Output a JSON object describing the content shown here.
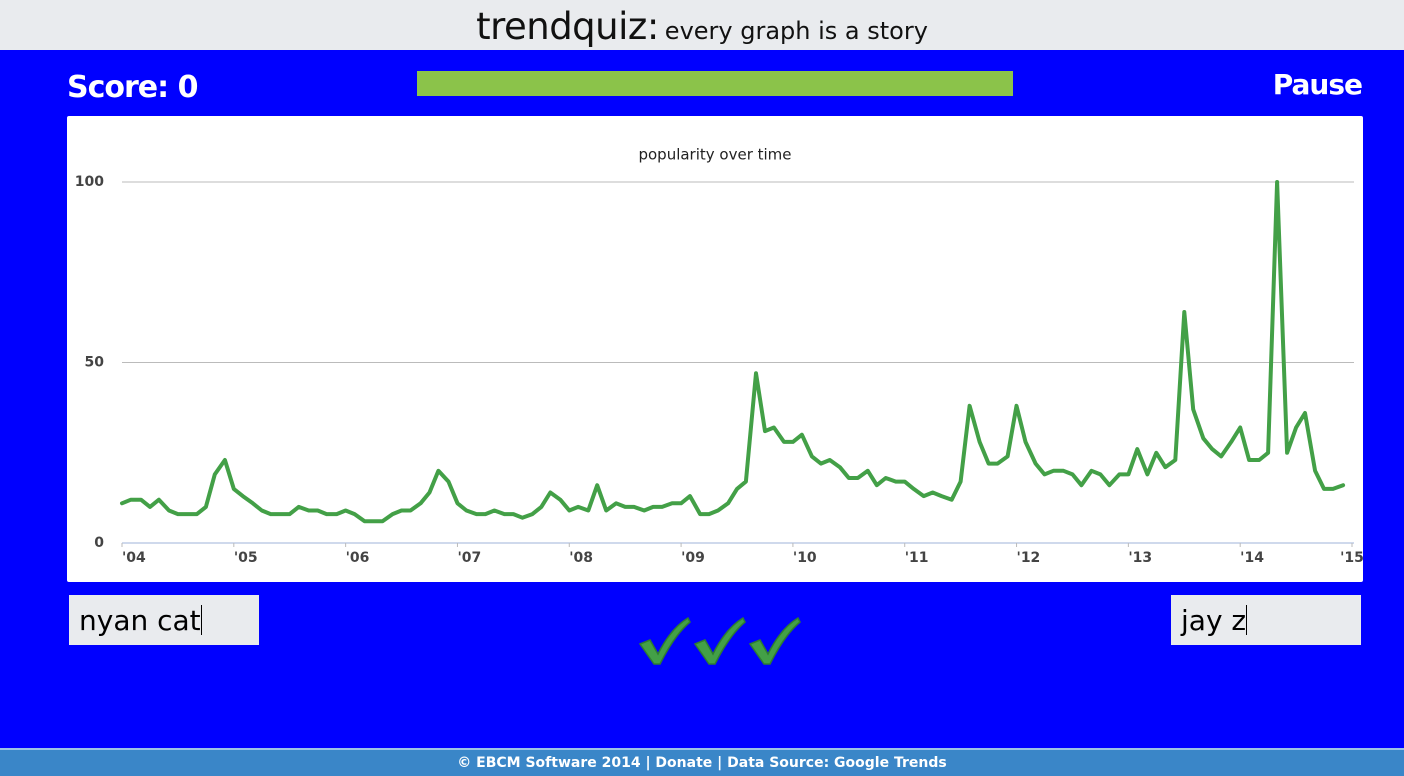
{
  "header": {
    "title": "trendquiz:",
    "subtitle": "every graph is a story"
  },
  "game": {
    "score_label": "Score:",
    "score": 0,
    "pause": "Pause",
    "left_answer": "nyan cat",
    "right_answer": "jay z"
  },
  "footer": "© EBCM Software 2014 | Donate | Data Source: Google Trends",
  "chart_data": {
    "type": "line",
    "title": "popularity over time",
    "color": "#43a047",
    "x": [
      2004,
      2004.08,
      2004.17,
      2004.25,
      2004.33,
      2004.42,
      2004.5,
      2004.58,
      2004.67,
      2004.75,
      2004.83,
      2004.92,
      2005,
      2005.08,
      2005.17,
      2005.25,
      2005.33,
      2005.42,
      2005.5,
      2005.58,
      2005.67,
      2005.75,
      2005.83,
      2005.92,
      2006,
      2006.08,
      2006.17,
      2006.25,
      2006.33,
      2006.42,
      2006.5,
      2006.58,
      2006.67,
      2006.75,
      2006.83,
      2006.92,
      2007,
      2007.08,
      2007.17,
      2007.25,
      2007.33,
      2007.42,
      2007.5,
      2007.58,
      2007.67,
      2007.75,
      2007.83,
      2007.92,
      2008,
      2008.08,
      2008.17,
      2008.25,
      2008.33,
      2008.42,
      2008.5,
      2008.58,
      2008.67,
      2008.75,
      2008.83,
      2008.92,
      2009,
      2009.08,
      2009.17,
      2009.25,
      2009.33,
      2009.42,
      2009.5,
      2009.58,
      2009.67,
      2009.75,
      2009.83,
      2009.92,
      2010,
      2010.08,
      2010.17,
      2010.25,
      2010.33,
      2010.42,
      2010.5,
      2010.58,
      2010.67,
      2010.75,
      2010.83,
      2010.92,
      2011,
      2011.08,
      2011.17,
      2011.25,
      2011.33,
      2011.42,
      2011.5,
      2011.58,
      2011.67,
      2011.75,
      2011.83,
      2011.92,
      2012,
      2012.08,
      2012.17,
      2012.25,
      2012.33,
      2012.42,
      2012.5,
      2012.58,
      2012.67,
      2012.75,
      2012.83,
      2012.92,
      2013,
      2013.08,
      2013.17,
      2013.25,
      2013.33,
      2013.42,
      2013.5,
      2013.58,
      2013.67,
      2013.75,
      2013.83,
      2013.92,
      2014,
      2014.08,
      2014.17,
      2014.25,
      2014.33,
      2014.42,
      2014.5,
      2014.58,
      2014.67,
      2014.75,
      2014.83,
      2014.92
    ],
    "values": [
      11,
      12,
      12,
      10,
      12,
      9,
      8,
      8,
      8,
      10,
      19,
      23,
      15,
      13,
      11,
      9,
      8,
      8,
      8,
      10,
      9,
      9,
      8,
      8,
      9,
      8,
      6,
      6,
      6,
      8,
      9,
      9,
      11,
      14,
      20,
      17,
      11,
      9,
      8,
      8,
      9,
      8,
      8,
      7,
      8,
      10,
      14,
      12,
      9,
      10,
      9,
      16,
      9,
      11,
      10,
      10,
      9,
      10,
      10,
      11,
      11,
      13,
      8,
      8,
      9,
      11,
      15,
      17,
      47,
      31,
      32,
      28,
      28,
      30,
      24,
      22,
      23,
      21,
      18,
      18,
      20,
      16,
      18,
      17,
      17,
      15,
      13,
      14,
      13,
      12,
      17,
      38,
      28,
      22,
      22,
      24,
      38,
      28,
      22,
      19,
      20,
      20,
      19,
      16,
      20,
      19,
      16,
      19,
      19,
      26,
      19,
      25,
      21,
      23,
      64,
      37,
      29,
      26,
      24,
      28,
      32,
      23,
      23,
      25,
      100,
      25,
      32,
      36,
      20,
      15,
      15,
      16
    ],
    "xlim": [
      2004,
      2015
    ],
    "xticks": [
      {
        "value": 2004,
        "label": "'04"
      },
      {
        "value": 2005,
        "label": "'05"
      },
      {
        "value": 2006,
        "label": "'06"
      },
      {
        "value": 2007,
        "label": "'07"
      },
      {
        "value": 2008,
        "label": "'08"
      },
      {
        "value": 2009,
        "label": "'09"
      },
      {
        "value": 2010,
        "label": "'10"
      },
      {
        "value": 2011,
        "label": "'11"
      },
      {
        "value": 2012,
        "label": "'12"
      },
      {
        "value": 2013,
        "label": "'13"
      },
      {
        "value": 2014,
        "label": "'14"
      },
      {
        "value": 2015,
        "label": "'15"
      }
    ],
    "ylim": [
      0,
      100
    ],
    "yticks": [
      0,
      50,
      100
    ],
    "grid": true
  }
}
